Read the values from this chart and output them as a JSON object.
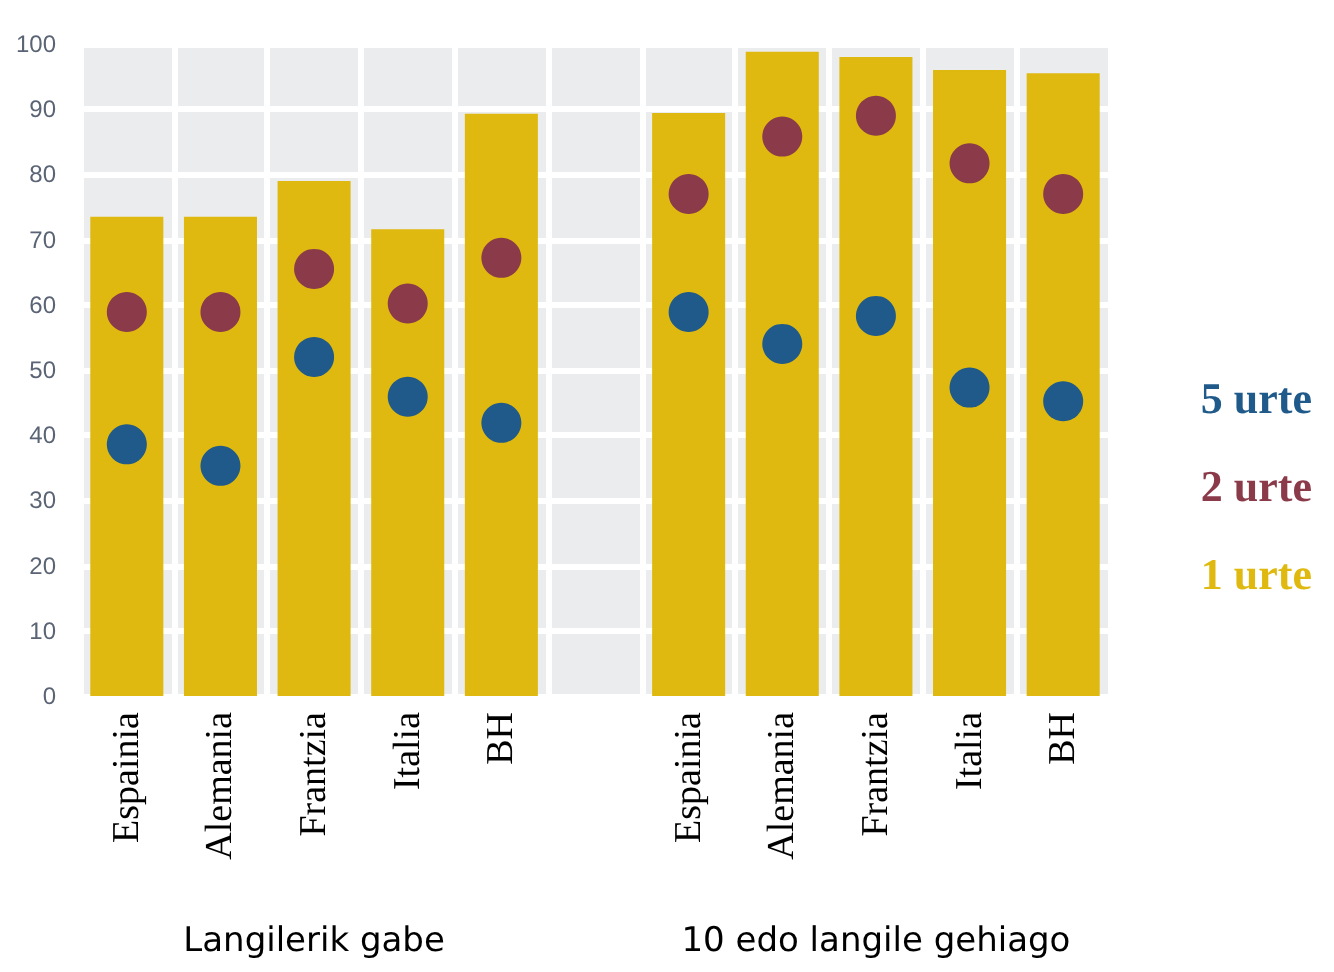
{
  "chart_data": {
    "type": "bar",
    "categories": [
      "Espainia",
      "Alemania",
      "Frantzia",
      "Italia",
      "BH",
      null,
      "Espainia",
      "Alemania",
      "Frantzia",
      "Italia",
      "BH"
    ],
    "series": [
      {
        "name": "1 urte",
        "color": "#dfb90f",
        "values": [
          73.5,
          73.5,
          79,
          71.6,
          89.3,
          null,
          89.4,
          98.8,
          98,
          96,
          95.5
        ]
      },
      {
        "name": "2 urte",
        "type": "scatter",
        "color": "#8b3a4a",
        "values": [
          58.9,
          58.9,
          65.5,
          60.2,
          67.2,
          null,
          77,
          85.8,
          89,
          81.7,
          77
        ]
      },
      {
        "name": "5 urte",
        "type": "scatter",
        "color": "#1f5a8a",
        "values": [
          38.6,
          35.3,
          52,
          45.9,
          41.9,
          null,
          58.9,
          54,
          58.3,
          47.3,
          45.2
        ]
      }
    ],
    "ylim": [
      0,
      100
    ],
    "yticks": [
      0,
      10,
      20,
      30,
      40,
      50,
      60,
      70,
      80,
      90,
      100
    ],
    "grid": true,
    "legend": "right",
    "marker": "circle",
    "annotations": [
      "Langilerik gabe",
      "10 edo langile gehiago"
    ]
  }
}
